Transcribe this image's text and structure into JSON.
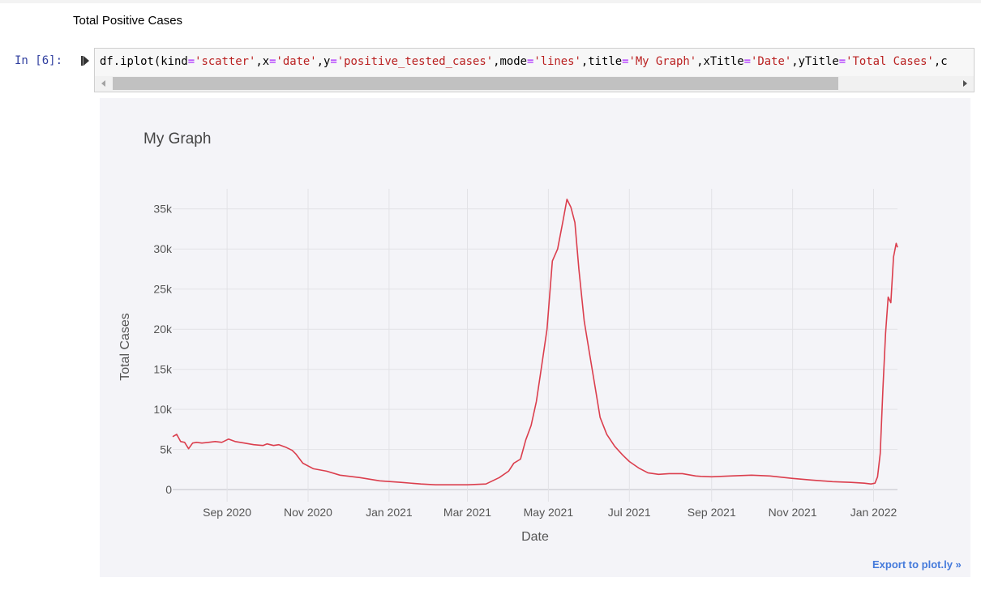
{
  "notebook": {
    "markdown_text": "Total Positive Cases",
    "prompt": "In [6]:",
    "code_tokens": [
      {
        "t": "df.iplot(kind",
        "c": ""
      },
      {
        "t": "=",
        "c": "eq"
      },
      {
        "t": "'scatter'",
        "c": "str"
      },
      {
        "t": ",x",
        "c": ""
      },
      {
        "t": "=",
        "c": "eq"
      },
      {
        "t": "'date'",
        "c": "str"
      },
      {
        "t": ",y",
        "c": ""
      },
      {
        "t": "=",
        "c": "eq"
      },
      {
        "t": "'positive_tested_cases'",
        "c": "str"
      },
      {
        "t": ",mode",
        "c": ""
      },
      {
        "t": "=",
        "c": "eq"
      },
      {
        "t": "'lines'",
        "c": "str"
      },
      {
        "t": ",title",
        "c": ""
      },
      {
        "t": "=",
        "c": "eq"
      },
      {
        "t": "'My Graph'",
        "c": "str"
      },
      {
        "t": ",xTitle",
        "c": ""
      },
      {
        "t": "=",
        "c": "eq"
      },
      {
        "t": "'Date'",
        "c": "str"
      },
      {
        "t": ",yTitle",
        "c": ""
      },
      {
        "t": "=",
        "c": "eq"
      },
      {
        "t": "'Total Cases'",
        "c": "str"
      },
      {
        "t": ",c",
        "c": ""
      }
    ]
  },
  "export_label": "Export to plot.ly »",
  "colors": {
    "line": "#db3e4d",
    "plot_bg": "#f4f4f8",
    "grid": "#e2e2e6",
    "tick_text": "#555555",
    "title_text": "#444444"
  },
  "chart_data": {
    "type": "line",
    "title": "My Graph",
    "xlabel": "Date",
    "ylabel": "Total Cases",
    "x_tick_labels": [
      "Sep 2020",
      "Nov 2020",
      "Jan 2021",
      "Mar 2021",
      "May 2021",
      "Jul 2021",
      "Sep 2021",
      "Nov 2021",
      "Jan 2022"
    ],
    "x_tick_dates": [
      "2020-09-01",
      "2020-11-01",
      "2021-01-01",
      "2021-03-01",
      "2021-05-01",
      "2021-07-01",
      "2021-09-01",
      "2021-11-01",
      "2022-01-01"
    ],
    "y_tick_labels": [
      "0",
      "5k",
      "10k",
      "15k",
      "20k",
      "25k",
      "30k",
      "35k"
    ],
    "y_tick_values": [
      0,
      5000,
      10000,
      15000,
      20000,
      25000,
      30000,
      35000
    ],
    "xlim": [
      "2020-07-22",
      "2022-01-19"
    ],
    "ylim": [
      -1500,
      37500
    ],
    "grid": true,
    "series": [
      {
        "x": [
          "2020-07-22",
          "2020-07-25",
          "2020-07-28",
          "2020-07-31",
          "2020-08-03",
          "2020-08-06",
          "2020-08-09",
          "2020-08-13",
          "2020-08-18",
          "2020-08-23",
          "2020-08-28",
          "2020-09-02",
          "2020-09-07",
          "2020-09-14",
          "2020-09-21",
          "2020-09-28",
          "2020-10-01",
          "2020-10-06",
          "2020-10-10",
          "2020-10-15",
          "2020-10-20",
          "2020-10-23",
          "2020-10-28",
          "2020-11-05",
          "2020-11-15",
          "2020-11-25",
          "2020-12-10",
          "2020-12-25",
          "2021-01-10",
          "2021-01-25",
          "2021-02-05",
          "2021-02-15",
          "2021-03-01",
          "2021-03-15",
          "2021-03-25",
          "2021-04-01",
          "2021-04-05",
          "2021-04-10",
          "2021-04-14",
          "2021-04-18",
          "2021-04-22",
          "2021-04-26",
          "2021-04-30",
          "2021-05-04",
          "2021-05-08",
          "2021-05-12",
          "2021-05-15",
          "2021-05-18",
          "2021-05-21",
          "2021-05-24",
          "2021-05-28",
          "2021-06-01",
          "2021-06-05",
          "2021-06-09",
          "2021-06-14",
          "2021-06-20",
          "2021-06-26",
          "2021-07-01",
          "2021-07-08",
          "2021-07-15",
          "2021-07-23",
          "2021-07-31",
          "2021-08-10",
          "2021-08-20",
          "2021-08-24",
          "2021-09-01",
          "2021-09-15",
          "2021-10-01",
          "2021-10-15",
          "2021-11-01",
          "2021-11-15",
          "2021-12-01",
          "2021-12-15",
          "2021-12-25",
          "2021-12-30",
          "2022-01-02",
          "2022-01-04",
          "2022-01-06",
          "2022-01-08",
          "2022-01-10",
          "2022-01-12",
          "2022-01-14",
          "2022-01-16",
          "2022-01-18",
          "2022-01-19"
        ],
        "y": [
          6600,
          6900,
          6000,
          5900,
          5100,
          5800,
          5900,
          5800,
          5900,
          6000,
          5900,
          6300,
          6000,
          5800,
          5600,
          5500,
          5700,
          5500,
          5600,
          5300,
          4900,
          4400,
          3300,
          2600,
          2300,
          1800,
          1500,
          1100,
          900,
          700,
          600,
          600,
          600,
          700,
          1500,
          2300,
          3300,
          3800,
          6200,
          8000,
          11000,
          15500,
          20000,
          28500,
          30000,
          33500,
          36200,
          35200,
          33300,
          27500,
          21000,
          17000,
          13000,
          9000,
          6900,
          5400,
          4300,
          3500,
          2700,
          2100,
          1900,
          2000,
          2000,
          1700,
          1650,
          1600,
          1700,
          1800,
          1700,
          1400,
          1200,
          1000,
          900,
          800,
          700,
          800,
          1600,
          4500,
          12500,
          19500,
          24000,
          23300,
          29000,
          30700,
          30200
        ]
      }
    ]
  }
}
